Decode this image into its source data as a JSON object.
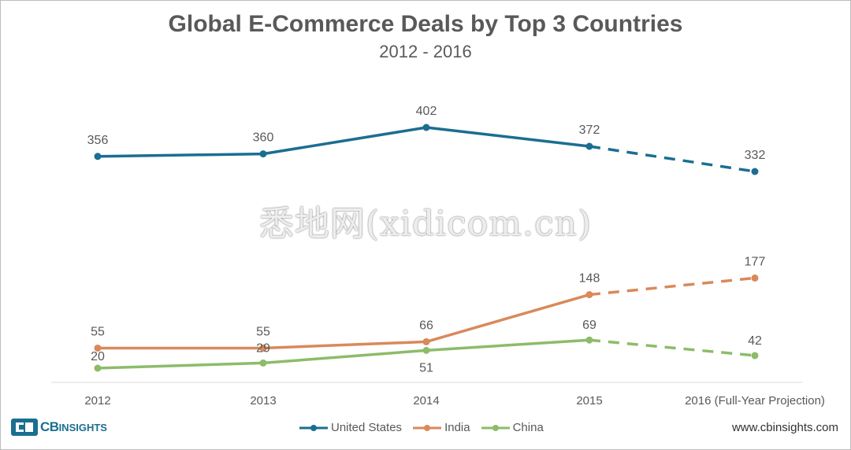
{
  "chart_data": {
    "type": "line",
    "title": "Global E-Commerce Deals by Top 3 Countries",
    "subtitle": "2012 - 2016",
    "categories": [
      "2012",
      "2013",
      "2014",
      "2015",
      "2016 (Full-Year Projection)"
    ],
    "projected_from_index": 3,
    "series": [
      {
        "name": "United States",
        "color": "#1b6e91",
        "values": [
          356,
          360,
          402,
          372,
          332
        ],
        "label_position": "above"
      },
      {
        "name": "India",
        "color": "#d9895a",
        "values": [
          55,
          55,
          66,
          148,
          177
        ],
        "label_position": "above"
      },
      {
        "name": "China",
        "color": "#8cbc6a",
        "values": [
          20,
          29,
          51,
          69,
          42
        ],
        "label_position": "china"
      }
    ],
    "legend": "bottom-center",
    "grid": false
  },
  "branding": {
    "logo_cb": "CB",
    "logo_insights": "INSIGHTS",
    "website": "www.cbinsights.com"
  },
  "watermark": "悉地网(xidicom.cn)"
}
